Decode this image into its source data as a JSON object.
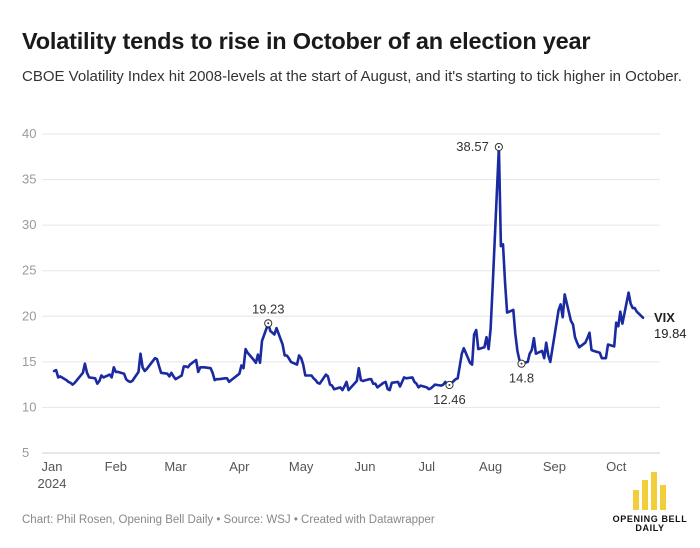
{
  "header": {
    "title": "Volatility tends to rise in October of an election year",
    "subtitle": "CBOE Volatility Index hit 2008-levels at the start of August, and it's starting to tick higher in October."
  },
  "footer": {
    "credit": "Chart: Phil Rosen, Opening Bell Daily • Source: WSJ • Created with Datawrapper"
  },
  "logo": {
    "text_line1": "OPENING BELL",
    "text_line2": "DAILY",
    "color": "#f2cf3a"
  },
  "chart_data": {
    "type": "line",
    "title": "Volatility tends to rise in October of an election year",
    "xlabel": "",
    "ylabel": "",
    "ylim": [
      5,
      40
    ],
    "yticks": [
      5,
      10,
      15,
      20,
      25,
      30,
      35,
      40
    ],
    "xticks": [
      {
        "date": "2024-01-01",
        "label": "Jan",
        "sublabel": "2024"
      },
      {
        "date": "2024-02-01",
        "label": "Feb"
      },
      {
        "date": "2024-03-01",
        "label": "Mar"
      },
      {
        "date": "2024-04-01",
        "label": "Apr"
      },
      {
        "date": "2024-05-01",
        "label": "May"
      },
      {
        "date": "2024-06-01",
        "label": "Jun"
      },
      {
        "date": "2024-07-01",
        "label": "Jul"
      },
      {
        "date": "2024-08-01",
        "label": "Aug"
      },
      {
        "date": "2024-09-01",
        "label": "Sep"
      },
      {
        "date": "2024-10-01",
        "label": "Oct"
      }
    ],
    "grid": true,
    "line_color": "#1a2aa0",
    "series": [
      {
        "name": "VIX",
        "last_value": "19.84",
        "points": [
          [
            "2024-01-02",
            14.0
          ],
          [
            "2024-01-03",
            14.1
          ],
          [
            "2024-01-04",
            13.3
          ],
          [
            "2024-01-05",
            13.4
          ],
          [
            "2024-01-08",
            13.0
          ],
          [
            "2024-01-09",
            12.8
          ],
          [
            "2024-01-10",
            12.7
          ],
          [
            "2024-01-11",
            12.5
          ],
          [
            "2024-01-12",
            12.7
          ],
          [
            "2024-01-16",
            13.8
          ],
          [
            "2024-01-17",
            14.8
          ],
          [
            "2024-01-18",
            13.8
          ],
          [
            "2024-01-19",
            13.3
          ],
          [
            "2024-01-22",
            13.2
          ],
          [
            "2024-01-23",
            12.6
          ],
          [
            "2024-01-24",
            12.9
          ],
          [
            "2024-01-25",
            13.5
          ],
          [
            "2024-01-26",
            13.3
          ],
          [
            "2024-01-29",
            13.6
          ],
          [
            "2024-01-30",
            13.3
          ],
          [
            "2024-01-31",
            14.4
          ],
          [
            "2024-02-01",
            13.9
          ],
          [
            "2024-02-02",
            13.9
          ],
          [
            "2024-02-05",
            13.7
          ],
          [
            "2024-02-06",
            13.1
          ],
          [
            "2024-02-07",
            12.9
          ],
          [
            "2024-02-08",
            12.8
          ],
          [
            "2024-02-09",
            12.9
          ],
          [
            "2024-02-12",
            13.9
          ],
          [
            "2024-02-13",
            15.9
          ],
          [
            "2024-02-14",
            14.4
          ],
          [
            "2024-02-15",
            14.0
          ],
          [
            "2024-02-16",
            14.2
          ],
          [
            "2024-02-20",
            15.4
          ],
          [
            "2024-02-21",
            15.3
          ],
          [
            "2024-02-22",
            14.5
          ],
          [
            "2024-02-23",
            13.8
          ],
          [
            "2024-02-26",
            13.7
          ],
          [
            "2024-02-27",
            13.4
          ],
          [
            "2024-02-28",
            13.8
          ],
          [
            "2024-02-29",
            13.4
          ],
          [
            "2024-03-01",
            13.1
          ],
          [
            "2024-03-04",
            13.5
          ],
          [
            "2024-03-05",
            14.5
          ],
          [
            "2024-03-06",
            14.5
          ],
          [
            "2024-03-07",
            14.4
          ],
          [
            "2024-03-08",
            14.7
          ],
          [
            "2024-03-11",
            15.2
          ],
          [
            "2024-03-12",
            13.9
          ],
          [
            "2024-03-13",
            14.4
          ],
          [
            "2024-03-14",
            14.4
          ],
          [
            "2024-03-15",
            14.4
          ],
          [
            "2024-03-18",
            14.3
          ],
          [
            "2024-03-19",
            13.8
          ],
          [
            "2024-03-20",
            13.0
          ],
          [
            "2024-03-21",
            13.1
          ],
          [
            "2024-03-22",
            13.1
          ],
          [
            "2024-03-25",
            13.2
          ],
          [
            "2024-03-26",
            13.2
          ],
          [
            "2024-03-27",
            12.8
          ],
          [
            "2024-03-28",
            13.0
          ],
          [
            "2024-04-01",
            13.7
          ],
          [
            "2024-04-02",
            14.6
          ],
          [
            "2024-04-03",
            14.3
          ],
          [
            "2024-04-04",
            16.4
          ],
          [
            "2024-04-05",
            16.0
          ],
          [
            "2024-04-08",
            15.2
          ],
          [
            "2024-04-09",
            14.9
          ],
          [
            "2024-04-10",
            15.8
          ],
          [
            "2024-04-11",
            14.9
          ],
          [
            "2024-04-12",
            17.3
          ],
          [
            "2024-04-15",
            19.2
          ],
          [
            "2024-04-16",
            18.4
          ],
          [
            "2024-04-17",
            18.2
          ],
          [
            "2024-04-18",
            18.0
          ],
          [
            "2024-04-19",
            18.7
          ],
          [
            "2024-04-22",
            16.9
          ],
          [
            "2024-04-23",
            15.7
          ],
          [
            "2024-04-24",
            15.7
          ],
          [
            "2024-04-25",
            15.4
          ],
          [
            "2024-04-26",
            15.0
          ],
          [
            "2024-04-29",
            14.7
          ],
          [
            "2024-04-30",
            15.7
          ],
          [
            "2024-05-01",
            15.4
          ],
          [
            "2024-05-02",
            14.7
          ],
          [
            "2024-05-03",
            13.5
          ],
          [
            "2024-05-06",
            13.5
          ],
          [
            "2024-05-07",
            13.2
          ],
          [
            "2024-05-08",
            13.0
          ],
          [
            "2024-05-09",
            12.7
          ],
          [
            "2024-05-10",
            12.6
          ],
          [
            "2024-05-13",
            13.6
          ],
          [
            "2024-05-14",
            13.4
          ],
          [
            "2024-05-15",
            12.5
          ],
          [
            "2024-05-16",
            12.4
          ],
          [
            "2024-05-17",
            12.0
          ],
          [
            "2024-05-20",
            12.2
          ],
          [
            "2024-05-21",
            11.9
          ],
          [
            "2024-05-22",
            12.3
          ],
          [
            "2024-05-23",
            12.8
          ],
          [
            "2024-05-24",
            11.9
          ],
          [
            "2024-05-28",
            12.9
          ],
          [
            "2024-05-29",
            14.3
          ],
          [
            "2024-05-30",
            13.0
          ],
          [
            "2024-05-31",
            12.9
          ],
          [
            "2024-06-03",
            13.1
          ],
          [
            "2024-06-04",
            13.1
          ],
          [
            "2024-06-05",
            12.6
          ],
          [
            "2024-06-06",
            12.6
          ],
          [
            "2024-06-07",
            12.2
          ],
          [
            "2024-06-10",
            12.7
          ],
          [
            "2024-06-11",
            12.8
          ],
          [
            "2024-06-12",
            12.0
          ],
          [
            "2024-06-13",
            11.9
          ],
          [
            "2024-06-14",
            12.7
          ],
          [
            "2024-06-17",
            12.8
          ],
          [
            "2024-06-18",
            12.3
          ],
          [
            "2024-06-20",
            13.3
          ],
          [
            "2024-06-21",
            13.2
          ],
          [
            "2024-06-24",
            13.3
          ],
          [
            "2024-06-25",
            12.8
          ],
          [
            "2024-06-26",
            12.6
          ],
          [
            "2024-06-27",
            12.2
          ],
          [
            "2024-06-28",
            12.4
          ],
          [
            "2024-07-01",
            12.2
          ],
          [
            "2024-07-02",
            12.0
          ],
          [
            "2024-07-03",
            12.1
          ],
          [
            "2024-07-05",
            12.5
          ],
          [
            "2024-07-08",
            12.4
          ],
          [
            "2024-07-09",
            12.5
          ],
          [
            "2024-07-10",
            12.8
          ],
          [
            "2024-07-11",
            12.5
          ],
          [
            "2024-07-12",
            12.46
          ],
          [
            "2024-07-15",
            13.1
          ],
          [
            "2024-07-16",
            13.2
          ],
          [
            "2024-07-17",
            14.5
          ],
          [
            "2024-07-18",
            15.9
          ],
          [
            "2024-07-19",
            16.5
          ],
          [
            "2024-07-22",
            14.9
          ],
          [
            "2024-07-23",
            14.7
          ],
          [
            "2024-07-24",
            18.0
          ],
          [
            "2024-07-25",
            18.5
          ],
          [
            "2024-07-26",
            16.4
          ],
          [
            "2024-07-29",
            16.6
          ],
          [
            "2024-07-30",
            17.7
          ],
          [
            "2024-07-31",
            16.4
          ],
          [
            "2024-08-01",
            18.6
          ],
          [
            "2024-08-02",
            23.4
          ],
          [
            "2024-08-05",
            38.57
          ],
          [
            "2024-08-06",
            27.7
          ],
          [
            "2024-08-07",
            27.9
          ],
          [
            "2024-08-08",
            23.8
          ],
          [
            "2024-08-09",
            20.4
          ],
          [
            "2024-08-12",
            20.7
          ],
          [
            "2024-08-13",
            18.1
          ],
          [
            "2024-08-14",
            16.2
          ],
          [
            "2024-08-15",
            15.2
          ],
          [
            "2024-08-16",
            14.8
          ],
          [
            "2024-08-19",
            15.0
          ],
          [
            "2024-08-20",
            15.9
          ],
          [
            "2024-08-21",
            16.3
          ],
          [
            "2024-08-22",
            17.6
          ],
          [
            "2024-08-23",
            15.9
          ],
          [
            "2024-08-26",
            16.2
          ],
          [
            "2024-08-27",
            15.4
          ],
          [
            "2024-08-28",
            17.1
          ],
          [
            "2024-08-29",
            15.7
          ],
          [
            "2024-08-30",
            15.0
          ],
          [
            "2024-09-03",
            20.7
          ],
          [
            "2024-09-04",
            21.3
          ],
          [
            "2024-09-05",
            19.9
          ],
          [
            "2024-09-06",
            22.4
          ],
          [
            "2024-09-09",
            19.5
          ],
          [
            "2024-09-10",
            19.1
          ],
          [
            "2024-09-11",
            17.7
          ],
          [
            "2024-09-12",
            17.1
          ],
          [
            "2024-09-13",
            16.6
          ],
          [
            "2024-09-16",
            17.1
          ],
          [
            "2024-09-17",
            17.6
          ],
          [
            "2024-09-18",
            18.2
          ],
          [
            "2024-09-19",
            16.3
          ],
          [
            "2024-09-20",
            16.2
          ],
          [
            "2024-09-23",
            16.0
          ],
          [
            "2024-09-24",
            15.4
          ],
          [
            "2024-09-25",
            15.4
          ],
          [
            "2024-09-26",
            15.4
          ],
          [
            "2024-09-27",
            16.9
          ],
          [
            "2024-09-30",
            16.7
          ],
          [
            "2024-10-01",
            19.3
          ],
          [
            "2024-10-02",
            18.9
          ],
          [
            "2024-10-03",
            20.5
          ],
          [
            "2024-10-04",
            19.2
          ],
          [
            "2024-10-07",
            22.6
          ],
          [
            "2024-10-08",
            21.4
          ],
          [
            "2024-10-09",
            20.9
          ],
          [
            "2024-10-10",
            20.9
          ],
          [
            "2024-10-11",
            20.5
          ],
          [
            "2024-10-14",
            19.84
          ]
        ]
      }
    ],
    "annotations": [
      {
        "date": "2024-04-15",
        "value": 19.23,
        "label": "19.23",
        "position": "above"
      },
      {
        "date": "2024-07-12",
        "value": 12.46,
        "label": "12.46",
        "position": "below"
      },
      {
        "date": "2024-08-05",
        "value": 38.57,
        "label": "38.57",
        "position": "left"
      },
      {
        "date": "2024-08-16",
        "value": 14.8,
        "label": "14.8",
        "position": "below"
      }
    ]
  }
}
